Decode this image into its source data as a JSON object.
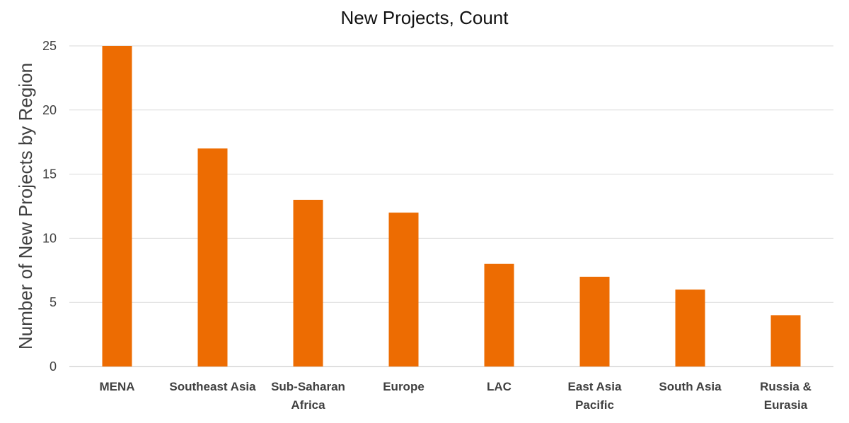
{
  "chart_data": {
    "type": "bar",
    "title": "New Projects, Count",
    "xlabel": "",
    "ylabel": "Number of New Projects by Region",
    "categories": [
      [
        "MENA"
      ],
      [
        "Southeast Asia"
      ],
      [
        "Sub-Saharan",
        "Africa"
      ],
      [
        "Europe"
      ],
      [
        "LAC"
      ],
      [
        "East Asia",
        "Pacific"
      ],
      [
        "South Asia"
      ],
      [
        "Russia &",
        "Eurasia"
      ]
    ],
    "values": [
      25,
      17,
      13,
      12,
      8,
      7,
      6,
      4
    ],
    "ylim": [
      0,
      25
    ],
    "yticks": [
      0,
      5,
      10,
      15,
      20,
      25
    ],
    "grid": true,
    "legend": "none",
    "bar_color": "#ED6C02"
  }
}
